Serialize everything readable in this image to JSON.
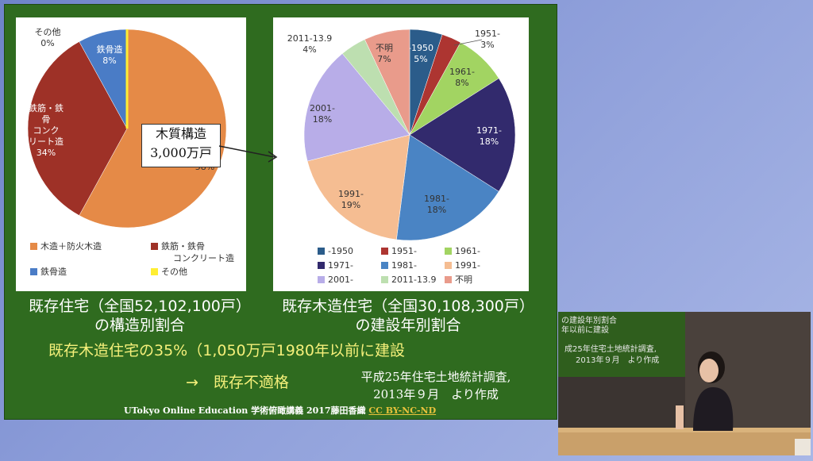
{
  "chart_data": [
    {
      "type": "pie",
      "categories": [
        "木造＋防火木造",
        "鉄筋・鉄骨コンクリート造",
        "鉄骨造",
        "その他"
      ],
      "values": [
        58,
        34,
        8,
        0
      ],
      "slice_labels": [
        {
          "name": "",
          "pct": "58%"
        },
        {
          "name": "鉄筋・鉄骨コンクリート造",
          "pct": "34%"
        },
        {
          "name": "鉄骨造",
          "pct": "8%"
        },
        {
          "name": "その他",
          "pct": "0%"
        }
      ],
      "colors": [
        "#e58a47",
        "#9e3127",
        "#4a7cc6",
        "#ffee33"
      ],
      "legend": [
        "木造＋防火木造",
        "鉄筋・鉄骨コンクリート造",
        "鉄骨造",
        "その他"
      ],
      "title": "既存住宅（全国52,102,100戸）の構造別割合",
      "legend_position": "bottom"
    },
    {
      "type": "pie",
      "categories": [
        "-1950",
        "1951-",
        "1961-",
        "1971-",
        "1981-",
        "1991-",
        "2001-",
        "2011-13.9",
        "不明"
      ],
      "values": [
        5,
        3,
        8,
        18,
        18,
        19,
        18,
        4,
        7
      ],
      "slice_labels": [
        "-1950 5%",
        "1951- 3%",
        "1961- 8%",
        "1971- 18%",
        "1981- 18%",
        "1991- 19%",
        "2001- 18%",
        "2011-13.9 4%",
        "不明 7%"
      ],
      "colors": [
        "#2b5c8a",
        "#ad3531",
        "#a2d462",
        "#322a6d",
        "#4a84c4",
        "#f5bd92",
        "#b8ade8",
        "#bddfb0",
        "#e99b8b"
      ],
      "legend": [
        "-1950",
        "1951-",
        "1961-",
        "1971-",
        "1981-",
        "1991-",
        "2001-",
        "2011-13.9",
        "不明"
      ],
      "title": "既存木造住宅（全国30,108,300戸）の建設年別割合",
      "legend_position": "bottom"
    }
  ],
  "slide": {
    "callout_line1": "木質構造",
    "callout_line2": "3,000万戸",
    "caption_left_1": "既存住宅（全国52,102,100戸）",
    "caption_left_2": "の構造別割合",
    "caption_right_1": "既存木造住宅（全国30,108,300戸）",
    "caption_right_2": "の建設年別割合",
    "highlight": "既存木造住宅の35%（1,050万戸1980年以前に建設",
    "arrow_text": "→　既存不適格",
    "source_1": "平成25年住宅土地統計調査,",
    "source_2": "2013年９月　より作成",
    "footer": "UTokyo Online Education 学術俯瞰講義 2017藤田香織",
    "license": "CC BY-NC-ND"
  },
  "video": {
    "line1": "の建設年別割合",
    "line2": "年以前に建設",
    "line3": "成25年住宅土地統計調査,",
    "line4": "2013年９月　より作成"
  }
}
